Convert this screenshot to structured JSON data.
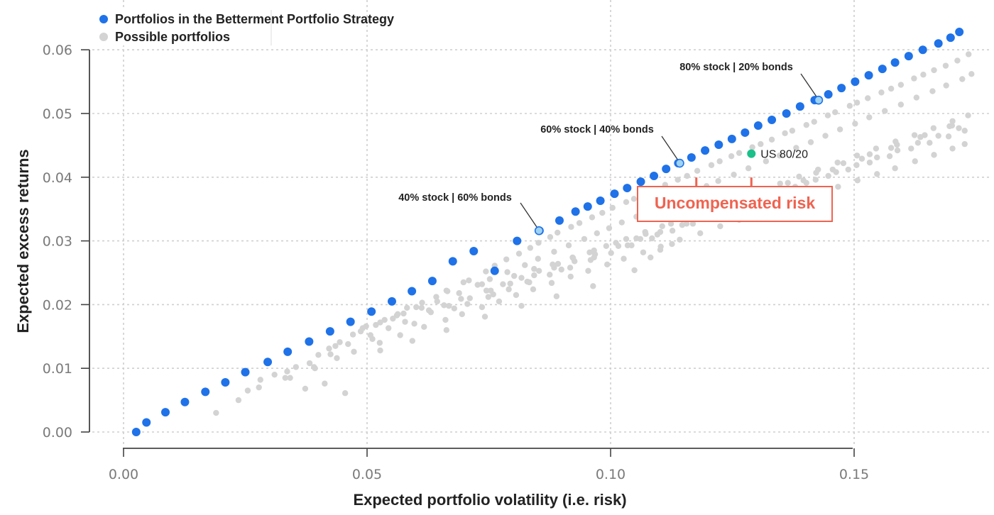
{
  "chart_data": {
    "type": "scatter",
    "title": "",
    "xlabel": "Expected portfolio volatility (i.e. risk)",
    "ylabel": "Expected excess returns",
    "xlim": [
      -0.008,
      0.176
    ],
    "ylim": [
      -0.0025,
      0.0645
    ],
    "x_ticks": [
      0.0,
      0.05,
      0.1,
      0.15
    ],
    "x_tick_labels": [
      "0.00",
      "0.05",
      "0.10",
      "0.15"
    ],
    "y_ticks": [
      0.0,
      0.01,
      0.02,
      0.03,
      0.04,
      0.05,
      0.06
    ],
    "y_tick_labels": [
      "0.00",
      "0.01",
      "0.02",
      "0.03",
      "0.04",
      "0.05",
      "0.06"
    ],
    "grid": true,
    "legend_position": "top-left",
    "colors": {
      "betterment": "#1f72e8",
      "possible": "#d3d3d3",
      "highlight_fill": "#9ed3f2",
      "highlight_stroke": "#1f72e8",
      "us8020": "#1bc08a",
      "uncompensated": "#ef6350"
    },
    "series": [
      {
        "name": "Portfolios in the Betterment Portfolio Strategy",
        "x": [
          0.0026,
          0.0047,
          0.0086,
          0.0126,
          0.0168,
          0.0209,
          0.025,
          0.0296,
          0.0337,
          0.0381,
          0.0424,
          0.0466,
          0.0509,
          0.0551,
          0.0592,
          0.0634,
          0.0676,
          0.0719,
          0.0762,
          0.0808,
          0.0854,
          0.0895,
          0.0928,
          0.0953,
          0.0979,
          0.1008,
          0.1034,
          0.1062,
          0.1089,
          0.1114,
          0.1139,
          0.1166,
          0.1194,
          0.1222,
          0.1249,
          0.1276,
          0.1303,
          0.1331,
          0.1361,
          0.1389,
          0.1419,
          0.1447,
          0.1474,
          0.1502,
          0.153,
          0.1558,
          0.1584,
          0.1612,
          0.1641,
          0.1673,
          0.1698,
          0.1716
        ],
        "y": [
          0.0,
          0.0015,
          0.0031,
          0.0047,
          0.0063,
          0.0078,
          0.0094,
          0.011,
          0.0126,
          0.0142,
          0.0158,
          0.0173,
          0.0189,
          0.0205,
          0.0221,
          0.0237,
          0.0268,
          0.0284,
          0.0253,
          0.03,
          0.0316,
          0.0332,
          0.0346,
          0.0354,
          0.0363,
          0.0374,
          0.0383,
          0.0393,
          0.0402,
          0.0413,
          0.0422,
          0.0431,
          0.0442,
          0.0451,
          0.046,
          0.047,
          0.0481,
          0.049,
          0.05,
          0.0511,
          0.0521,
          0.053,
          0.054,
          0.055,
          0.056,
          0.057,
          0.058,
          0.059,
          0.06,
          0.061,
          0.0619,
          0.0628
        ]
      },
      {
        "name": "Possible portfolios",
        "x": [
          0.019,
          0.0236,
          0.0278,
          0.0255,
          0.031,
          0.0336,
          0.0382,
          0.0342,
          0.04,
          0.0422,
          0.0393,
          0.0435,
          0.0444,
          0.0471,
          0.0498,
          0.0491,
          0.0536,
          0.0527,
          0.0563,
          0.0561,
          0.0582,
          0.0613,
          0.0601,
          0.0642,
          0.0663,
          0.0665,
          0.0698,
          0.0709,
          0.0744,
          0.0762,
          0.0786,
          0.0812,
          0.0835,
          0.0852,
          0.0876,
          0.0891,
          0.0919,
          0.0936,
          0.0962,
          0.0983,
          0.1004,
          0.1032,
          0.1048,
          0.1074,
          0.1089,
          0.1112,
          0.1138,
          0.1157,
          0.1178,
          0.1207,
          0.1224,
          0.1248,
          0.1264,
          0.1291,
          0.1308,
          0.1331,
          0.1358,
          0.1373,
          0.1402,
          0.1418,
          0.1446,
          0.1461,
          0.1491,
          0.1506,
          0.1528,
          0.1556,
          0.1576,
          0.1596,
          0.1623,
          0.1642,
          0.1664,
          0.1688,
          0.1712,
          0.1735,
          0.0487,
          0.0518,
          0.0553,
          0.0575,
          0.0612,
          0.0644,
          0.0689,
          0.0727,
          0.0752,
          0.0788,
          0.0824,
          0.0851,
          0.0884,
          0.0914,
          0.0946,
          0.0972,
          0.0997,
          0.1023,
          0.1053,
          0.1081,
          0.1107,
          0.1134,
          0.1163,
          0.1197,
          0.1221,
          0.1253,
          0.1283,
          0.1319,
          0.1347,
          0.1381,
          0.1411,
          0.1441,
          0.1471,
          0.1502,
          0.1531,
          0.1563,
          0.1596,
          0.1628,
          0.1661,
          0.1689,
          0.1722,
          0.1741,
          0.0461,
          0.0507,
          0.0544,
          0.0578,
          0.0631,
          0.0668,
          0.0711,
          0.0754,
          0.0794,
          0.0843,
          0.0884,
          0.0926,
          0.0968,
          0.1016,
          0.1061,
          0.1102,
          0.1147,
          0.1188,
          0.1231,
          0.1274,
          0.1316,
          0.1361,
          0.1402,
          0.1447,
          0.1488,
          0.1532,
          0.1573,
          0.1617,
          0.1655,
          0.1694,
          0.1727,
          0.0332,
          0.0391,
          0.0438,
          0.0473,
          0.0526,
          0.0568,
          0.0617,
          0.0661,
          0.0695,
          0.0736,
          0.0771,
          0.0806,
          0.0841,
          0.0879,
          0.0918,
          0.0954,
          0.0993,
          0.1027,
          0.1067,
          0.1103,
          0.1142,
          0.1184,
          0.1225,
          0.1264,
          0.1302,
          0.1342,
          0.1384,
          0.1421,
          0.1467,
          0.1507,
          0.1547,
          0.1584,
          0.1625,
          0.1664,
          0.1702,
          0.1727,
          0.0373,
          0.0413,
          0.0455,
          0.0527,
          0.0593,
          0.0663,
          0.0742,
          0.0817,
          0.0889,
          0.0964,
          0.1049,
          0.1082,
          0.1102,
          0.1126,
          0.1053,
          0.0736,
          0.0802,
          0.0843,
          0.0881,
          0.0922,
          0.0966,
          0.1011,
          0.1072,
          0.1124,
          0.1184,
          0.1244,
          0.1302,
          0.1364,
          0.1422,
          0.1478,
          0.1532,
          0.1588,
          0.1645,
          0.1701,
          0.0627,
          0.0658,
          0.0693,
          0.0745,
          0.0779,
          0.0817,
          0.0853,
          0.0892,
          0.0923,
          0.0957,
          0.0991,
          0.1032,
          0.1071,
          0.1106,
          0.1148,
          0.1189,
          0.1228,
          0.1267,
          0.1306,
          0.1348,
          0.1387,
          0.1426,
          0.1466,
          0.1506,
          0.1545,
          0.1585,
          0.1624,
          0.1663,
          0.1702,
          0.1734,
          0.0706,
          0.0749,
          0.0791,
          0.0833,
          0.0875,
          0.0917,
          0.0959,
          0.1001,
          0.1043,
          0.1085,
          0.1127,
          0.1169,
          0.1211,
          0.1253,
          0.1295,
          0.1337,
          0.1379,
          0.1421,
          0.1463,
          0.1505,
          0.1547,
          0.1589,
          0.1631,
          0.1673,
          0.1715,
          0.0281,
          0.0354,
          0.0425,
          0.0511,
          0.0597,
          0.0679,
          0.0759,
          0.0829,
          0.0899,
          0.0966,
          0.1035,
          0.1096,
          0.1156,
          0.1216,
          0.1276,
          0.1336,
          0.1396,
          0.1456,
          0.1516,
          0.1576,
          0.1636,
          0.1696
        ],
        "y": [
          0.003,
          0.005,
          0.007,
          0.0065,
          0.009,
          0.0095,
          0.0108,
          0.0085,
          0.0121,
          0.0131,
          0.01,
          0.0135,
          0.0141,
          0.0153,
          0.0166,
          0.0163,
          0.0176,
          0.0172,
          0.0185,
          0.0183,
          0.0195,
          0.0203,
          0.0196,
          0.0212,
          0.0222,
          0.0221,
          0.0235,
          0.0238,
          0.0252,
          0.0261,
          0.0271,
          0.028,
          0.0289,
          0.0297,
          0.0306,
          0.0313,
          0.0322,
          0.0328,
          0.0337,
          0.0344,
          0.0352,
          0.0361,
          0.0366,
          0.0375,
          0.038,
          0.0388,
          0.0396,
          0.0402,
          0.041,
          0.0419,
          0.0425,
          0.0433,
          0.0438,
          0.0447,
          0.0452,
          0.0459,
          0.0469,
          0.0473,
          0.0482,
          0.0487,
          0.0497,
          0.0502,
          0.0512,
          0.0517,
          0.0524,
          0.0533,
          0.0539,
          0.0545,
          0.0555,
          0.0561,
          0.0568,
          0.0575,
          0.0583,
          0.0593,
          0.0158,
          0.0168,
          0.0178,
          0.0186,
          0.0195,
          0.0205,
          0.0218,
          0.0231,
          0.024,
          0.0251,
          0.0262,
          0.0272,
          0.0283,
          0.0293,
          0.0303,
          0.0312,
          0.032,
          0.0329,
          0.0338,
          0.0348,
          0.0357,
          0.0365,
          0.0374,
          0.0386,
          0.0394,
          0.0404,
          0.0414,
          0.0425,
          0.0434,
          0.0446,
          0.0455,
          0.0465,
          0.0475,
          0.0484,
          0.0494,
          0.0504,
          0.0514,
          0.0525,
          0.0535,
          0.0544,
          0.0554,
          0.0562,
          0.0138,
          0.0152,
          0.0163,
          0.0173,
          0.0188,
          0.0198,
          0.021,
          0.0222,
          0.0233,
          0.0246,
          0.0258,
          0.0268,
          0.0279,
          0.0292,
          0.0303,
          0.0314,
          0.0325,
          0.0336,
          0.0347,
          0.0358,
          0.0368,
          0.038,
          0.0391,
          0.0402,
          0.0412,
          0.0423,
          0.0433,
          0.0445,
          0.0454,
          0.0464,
          0.0473,
          0.0085,
          0.0102,
          0.0116,
          0.0126,
          0.014,
          0.0152,
          0.0165,
          0.0176,
          0.0185,
          0.0196,
          0.0205,
          0.0215,
          0.0224,
          0.0234,
          0.0244,
          0.0253,
          0.0263,
          0.0272,
          0.0282,
          0.0291,
          0.0302,
          0.0312,
          0.0323,
          0.0333,
          0.0343,
          0.0353,
          0.0363,
          0.0373,
          0.0385,
          0.0395,
          0.0405,
          0.0414,
          0.0425,
          0.0435,
          0.0445,
          0.0452,
          0.0068,
          0.0076,
          0.0061,
          0.0128,
          0.0143,
          0.016,
          0.0181,
          0.0198,
          0.0213,
          0.0229,
          0.0254,
          0.0274,
          0.0286,
          0.0295,
          0.0304,
          0.0232,
          0.0245,
          0.0256,
          0.0263,
          0.0274,
          0.0285,
          0.0297,
          0.0311,
          0.0327,
          0.0344,
          0.0359,
          0.0375,
          0.0391,
          0.0407,
          0.0422,
          0.0436,
          0.0451,
          0.0466,
          0.0481,
          0.0191,
          0.0199,
          0.0209,
          0.0222,
          0.0232,
          0.0242,
          0.0253,
          0.0264,
          0.0273,
          0.0282,
          0.0292,
          0.0303,
          0.0314,
          0.0323,
          0.0335,
          0.0346,
          0.0357,
          0.0368,
          0.0378,
          0.039,
          0.0401,
          0.0412,
          0.0423,
          0.0434,
          0.0445,
          0.0456,
          0.0466,
          0.0477,
          0.0488,
          0.0497,
          0.0201,
          0.0212,
          0.0224,
          0.0235,
          0.0247,
          0.0258,
          0.027,
          0.0281,
          0.0293,
          0.0304,
          0.0316,
          0.0327,
          0.0339,
          0.035,
          0.0362,
          0.0373,
          0.0385,
          0.0396,
          0.0408,
          0.0419,
          0.0431,
          0.0442,
          0.0454,
          0.0465,
          0.0477,
          0.0082,
          0.0102,
          0.0122,
          0.0146,
          0.017,
          0.0194,
          0.0216,
          0.0236,
          0.0255,
          0.0274,
          0.0293,
          0.031,
          0.0327,
          0.0344,
          0.0361,
          0.0378,
          0.0395,
          0.0412,
          0.0429,
          0.0446,
          0.0463,
          0.048
        ]
      }
    ],
    "highlighted": [
      {
        "label": "40% stock | 60% bonds",
        "x": 0.0853,
        "y": 0.0316
      },
      {
        "label": "60% stock | 40% bonds",
        "x": 0.1142,
        "y": 0.0422
      },
      {
        "label": "80% stock | 20% bonds",
        "x": 0.1427,
        "y": 0.0521
      }
    ],
    "us_8020": {
      "label": "US 80/20",
      "x": 0.1289,
      "y": 0.0437
    },
    "uncompensated_risk": {
      "label": "Uncompensated risk",
      "x_from": 0.1176,
      "x_to": 0.1289,
      "y": 0.0433
    }
  }
}
